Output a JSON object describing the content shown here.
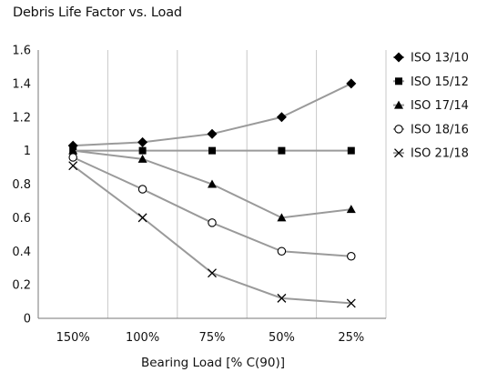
{
  "chart_data": {
    "type": "line",
    "title": "Debris Life Factor vs. Load",
    "xlabel": "Bearing Load [% C(90)]",
    "ylabel": "",
    "categories": [
      "150%",
      "100%",
      "75%",
      "50%",
      "25%"
    ],
    "ylim": [
      0,
      1.6
    ],
    "yticks": [
      "0",
      "0.2",
      "0.4",
      "0.6",
      "0.8",
      "1",
      "1.2",
      "1.4",
      "1.6"
    ],
    "grid": "vertical",
    "legend_position": "right",
    "line_color": "#9a9a9a",
    "marker_color": "#000000",
    "series": [
      {
        "name": "ISO 13/10",
        "marker": "diamond",
        "values": [
          1.03,
          1.05,
          1.1,
          1.2,
          1.4
        ]
      },
      {
        "name": "ISO 15/12",
        "marker": "square",
        "values": [
          1.0,
          1.0,
          1.0,
          1.0,
          1.0
        ]
      },
      {
        "name": "ISO 17/14",
        "marker": "triangle",
        "values": [
          1.0,
          0.95,
          0.8,
          0.6,
          0.65
        ]
      },
      {
        "name": "ISO 18/16",
        "marker": "circle",
        "values": [
          0.96,
          0.77,
          0.57,
          0.4,
          0.37
        ]
      },
      {
        "name": "ISO 21/18",
        "marker": "x",
        "values": [
          0.91,
          0.6,
          0.27,
          0.12,
          0.09
        ]
      }
    ]
  }
}
